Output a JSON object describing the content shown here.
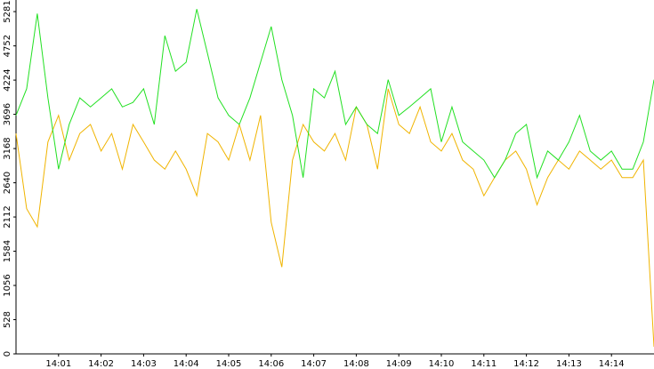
{
  "chart_data": {
    "type": "line",
    "x": [
      0,
      0.25,
      0.5,
      0.75,
      1,
      1.25,
      1.5,
      1.75,
      2,
      2.25,
      2.5,
      2.75,
      3,
      3.25,
      3.5,
      3.75,
      4,
      4.25,
      4.5,
      4.75,
      5,
      5.25,
      5.5,
      5.75,
      6,
      6.25,
      6.5,
      6.75,
      7,
      7.25,
      7.5,
      7.75,
      8,
      8.25,
      8.5,
      8.75,
      9,
      9.25,
      9.5,
      9.75,
      10,
      10.25,
      10.5,
      10.75,
      11,
      11.25,
      11.5,
      11.75,
      12,
      12.25,
      12.5,
      12.75,
      13,
      13.25,
      13.5,
      13.75,
      14,
      14.25,
      14.5,
      14.75,
      15
    ],
    "series": [
      {
        "color": "#22e022",
        "values": [
          3680,
          4090,
          5250,
          3950,
          2850,
          3540,
          3950,
          3810,
          3950,
          4090,
          3810,
          3880,
          4090,
          3540,
          4910,
          4360,
          4500,
          5320,
          4640,
          3950,
          3680,
          3540,
          3950,
          4500,
          5050,
          4230,
          3680,
          2720,
          4090,
          3950,
          4360,
          3540,
          3810,
          3540,
          3400,
          4230,
          3680,
          3810,
          3950,
          4090,
          3270,
          3810,
          3270,
          3130,
          2990,
          2720,
          2990,
          3400,
          3540,
          2720,
          3130,
          2990,
          3270,
          3680,
          3130,
          2990,
          3130,
          2850,
          2850,
          3270,
          4230
        ]
      },
      {
        "color": "#f0b400",
        "values": [
          3400,
          2240,
          1960,
          3270,
          3680,
          2990,
          3400,
          3540,
          3130,
          3400,
          2850,
          3540,
          3270,
          2990,
          2850,
          3130,
          2850,
          2440,
          3400,
          3270,
          2990,
          3540,
          2990,
          3680,
          2030,
          1340,
          2990,
          3540,
          3270,
          3130,
          3400,
          2990,
          3810,
          3540,
          2850,
          4090,
          3540,
          3400,
          3810,
          3270,
          3130,
          3400,
          2990,
          2850,
          2440,
          2720,
          2990,
          3130,
          2850,
          2300,
          2720,
          2990,
          2850,
          3130,
          2990,
          2850,
          2990,
          2720,
          2720,
          2990,
          110
        ]
      }
    ],
    "xlim": [
      0,
      15
    ],
    "xticks": [
      {
        "value": 1,
        "label": "14:01"
      },
      {
        "value": 2,
        "label": "14:02"
      },
      {
        "value": 3,
        "label": "14:03"
      },
      {
        "value": 4,
        "label": "14:04"
      },
      {
        "value": 5,
        "label": "14:05"
      },
      {
        "value": 6,
        "label": "14:06"
      },
      {
        "value": 7,
        "label": "14:07"
      },
      {
        "value": 8,
        "label": "14:08"
      },
      {
        "value": 9,
        "label": "14:09"
      },
      {
        "value": 10,
        "label": "14:10"
      },
      {
        "value": 11,
        "label": "14:11"
      },
      {
        "value": 12,
        "label": "14:12"
      },
      {
        "value": 13,
        "label": "14:13"
      },
      {
        "value": 14,
        "label": "14:14"
      }
    ],
    "ylim": [
      0,
      5460
    ],
    "yticks": [
      0,
      528,
      1056,
      1584,
      2112,
      2640,
      3168,
      3696,
      4224,
      4752,
      5281
    ]
  }
}
